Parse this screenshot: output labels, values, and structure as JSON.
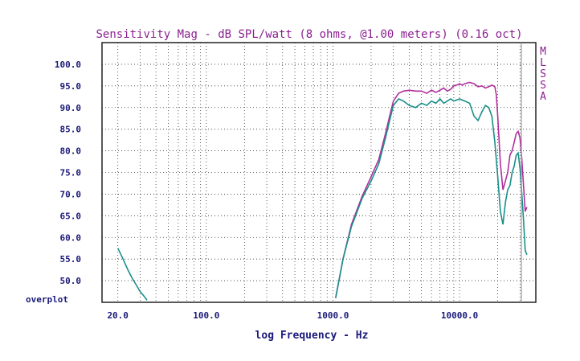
{
  "chart_data": {
    "type": "line",
    "title": "Sensitivity Mag - dB SPL/watt (8 ohms, @1.00 meters) (0.16 oct)",
    "xlabel": "log Frequency - Hz",
    "ylabel": "",
    "xscale": "log",
    "xlim": [
      15,
      40000
    ],
    "ylim": [
      45,
      105
    ],
    "x_tick_labels": [
      {
        "value": 20,
        "label": "20.0"
      },
      {
        "value": 100,
        "label": "100.0"
      },
      {
        "value": 1000,
        "label": "1000.0"
      },
      {
        "value": 10000,
        "label": "10000.0"
      }
    ],
    "y_tick_labels": [
      {
        "value": 100,
        "label": "100.0"
      },
      {
        "value": 95,
        "label": "95.0"
      },
      {
        "value": 90,
        "label": "90.0"
      },
      {
        "value": 85,
        "label": "85.0"
      },
      {
        "value": 80,
        "label": "80.0"
      },
      {
        "value": 75,
        "label": "75.0"
      },
      {
        "value": 70,
        "label": "70.0"
      },
      {
        "value": 65,
        "label": "65.0"
      },
      {
        "value": 60,
        "label": "60.0"
      },
      {
        "value": 55,
        "label": "55.0"
      },
      {
        "value": 50,
        "label": "50.0"
      }
    ],
    "overplot_label": "overplot",
    "side_labels": [
      "M",
      "L",
      "S",
      "S",
      "A"
    ],
    "grid": true,
    "series": [
      {
        "name": "magenta",
        "color": "#b0309e",
        "x": [
          1050,
          1200,
          1400,
          1700,
          2000,
          2300,
          2600,
          2800,
          3000,
          3300,
          3600,
          4000,
          4500,
          5000,
          5500,
          6000,
          6500,
          7000,
          7500,
          8000,
          8500,
          9000,
          9500,
          10000,
          10500,
          11000,
          12000,
          13000,
          14000,
          15000,
          16000,
          17000,
          18000,
          19000,
          19500,
          20000,
          21000,
          22000,
          23000,
          24000,
          25000,
          26000,
          27000,
          28000,
          29000,
          30000,
          31000,
          32000,
          33000,
          34000
        ],
        "y": [
          46,
          55,
          63,
          69.5,
          74,
          78,
          84,
          88,
          91.5,
          93.3,
          93.8,
          94,
          93.8,
          93.8,
          93.3,
          94,
          93.5,
          94,
          94.5,
          93.8,
          94.2,
          95,
          95.2,
          95.5,
          95.2,
          95.5,
          95.8,
          95.5,
          94.8,
          95,
          94.5,
          94.8,
          95.2,
          94.8,
          93,
          88,
          77,
          71,
          73,
          75,
          79,
          80,
          82,
          84,
          84.5,
          83,
          78,
          72,
          66,
          67
        ]
      },
      {
        "name": "teal",
        "color": "#1a8f8a",
        "x_left": [
          20,
          22,
          24,
          26,
          28,
          30,
          32,
          34
        ],
        "y_left": [
          57.5,
          55,
          52.5,
          50.5,
          49,
          47.5,
          46.5,
          45.5
        ],
        "x": [
          1050,
          1200,
          1400,
          1700,
          2000,
          2300,
          2600,
          2800,
          3000,
          3300,
          3600,
          4000,
          4500,
          5000,
          5500,
          6000,
          6500,
          7000,
          7500,
          8000,
          8500,
          9000,
          10000,
          11000,
          12000,
          13000,
          14000,
          15000,
          16000,
          17000,
          18000,
          19000,
          20000,
          21000,
          22000,
          23000,
          24000,
          25000,
          26000,
          27000,
          28000,
          29000,
          30000,
          31000,
          32000,
          33000,
          34000
        ],
        "y": [
          46,
          55,
          62.5,
          69,
          73,
          77,
          83,
          87,
          90.5,
          92,
          91.5,
          90.5,
          90,
          91,
          90.5,
          91.5,
          91,
          92,
          91,
          91.5,
          92,
          91.5,
          92,
          91.5,
          91,
          88,
          87,
          89,
          90.5,
          90,
          88,
          82,
          74,
          66,
          63,
          68,
          71,
          72,
          75,
          76.5,
          79,
          79.5,
          76,
          70,
          64,
          57,
          56
        ]
      }
    ]
  }
}
